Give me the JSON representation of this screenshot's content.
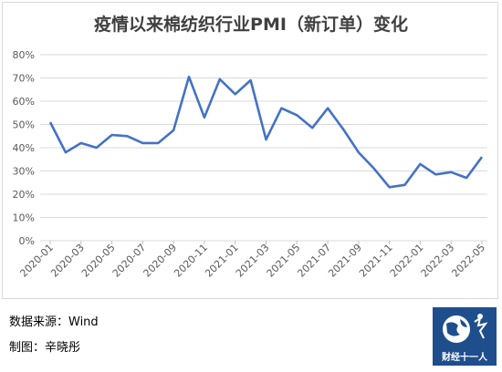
{
  "chart_data": {
    "type": "line",
    "title": "疫情以来棉纺织行业PMI（新订单）变化",
    "xlabel": "",
    "ylabel": "",
    "ylim": [
      0,
      80
    ],
    "yticks": [
      "0%",
      "10%",
      "20%",
      "30%",
      "40%",
      "50%",
      "60%",
      "70%",
      "80%"
    ],
    "x": [
      "2020-01",
      "2020-02",
      "2020-03",
      "2020-04",
      "2020-05",
      "2020-06",
      "2020-07",
      "2020-08",
      "2020-09",
      "2020-10",
      "2020-11",
      "2020-12",
      "2021-01",
      "2021-02",
      "2021-03",
      "2021-04",
      "2021-05",
      "2021-06",
      "2021-07",
      "2021-08",
      "2021-09",
      "2021-10",
      "2021-11",
      "2021-12",
      "2022-01",
      "2022-02",
      "2022-03",
      "2022-04",
      "2022-05"
    ],
    "xtick_labels": [
      "2020-01",
      "2020-03",
      "2020-05",
      "2020-07",
      "2020-09",
      "2020-11",
      "2021-01",
      "2021-03",
      "2021-05",
      "2021-07",
      "2021-09",
      "2021-11",
      "2022-01",
      "2022-03",
      "2022-05"
    ],
    "grid": true,
    "legend": "none",
    "line_color": "#4472c4",
    "series": [
      {
        "values": [
          51,
          38,
          42,
          40,
          45.5,
          45,
          42,
          42,
          47.5,
          70.5,
          53,
          69.5,
          63,
          69,
          43.5,
          57,
          54,
          48.5,
          57,
          48,
          38,
          31,
          23,
          24,
          33,
          28.5,
          29.5,
          27,
          36
        ]
      }
    ]
  },
  "footer": {
    "source": "数据来源：Wind",
    "maker": "制图：辛晓彤"
  },
  "logo": {
    "text": "财经十一人"
  }
}
